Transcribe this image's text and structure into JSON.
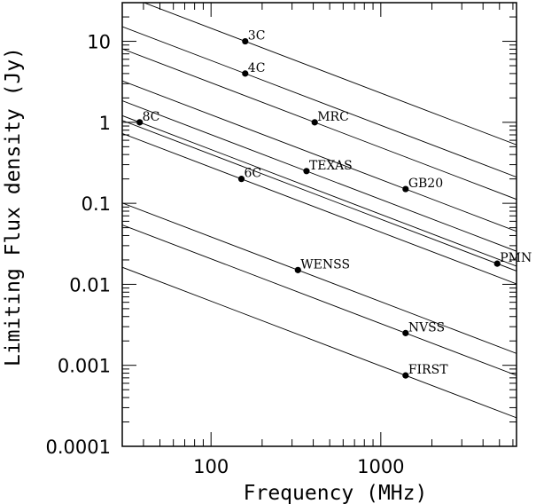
{
  "chart_data": {
    "type": "scatter",
    "x_scale": "log",
    "y_scale": "log",
    "xlim": [
      30,
      6300
    ],
    "ylim": [
      0.0001,
      30
    ],
    "xlabel": "Frequency (MHz)",
    "ylabel": "Limiting Flux density (Jy)",
    "x_ticks": [
      {
        "value": 100,
        "label": "100"
      },
      {
        "value": 1000,
        "label": "1000"
      }
    ],
    "y_ticks": [
      {
        "value": 0.0001,
        "label": "0.0001"
      },
      {
        "value": 0.001,
        "label": "0.001"
      },
      {
        "value": 0.01,
        "label": "0.01"
      },
      {
        "value": 0.1,
        "label": "0.1"
      },
      {
        "value": 1,
        "label": "1"
      },
      {
        "value": 10,
        "label": "10"
      }
    ],
    "points": [
      {
        "name": "3C",
        "x": 159,
        "y": 10
      },
      {
        "name": "4C",
        "x": 159,
        "y": 4
      },
      {
        "name": "8C",
        "x": 38,
        "y": 1
      },
      {
        "name": "MRC",
        "x": 408,
        "y": 1
      },
      {
        "name": "6C",
        "x": 151,
        "y": 0.2
      },
      {
        "name": "TEXAS",
        "x": 365,
        "y": 0.25
      },
      {
        "name": "GB20",
        "x": 1400,
        "y": 0.15
      },
      {
        "name": "PMN",
        "x": 4850,
        "y": 0.018
      },
      {
        "name": "WENSS",
        "x": 325,
        "y": 0.015
      },
      {
        "name": "NVSS",
        "x": 1400,
        "y": 0.0025
      },
      {
        "name": "FIRST",
        "x": 1400,
        "y": 0.00075
      }
    ],
    "reference_lines": {
      "spectral_index": -0.8,
      "anchors": [
        "3C",
        "4C",
        "MRC",
        "8C",
        "TEXAS",
        "GB20",
        "PMN",
        "6C",
        "WENSS",
        "NVSS",
        "FIRST"
      ]
    }
  }
}
